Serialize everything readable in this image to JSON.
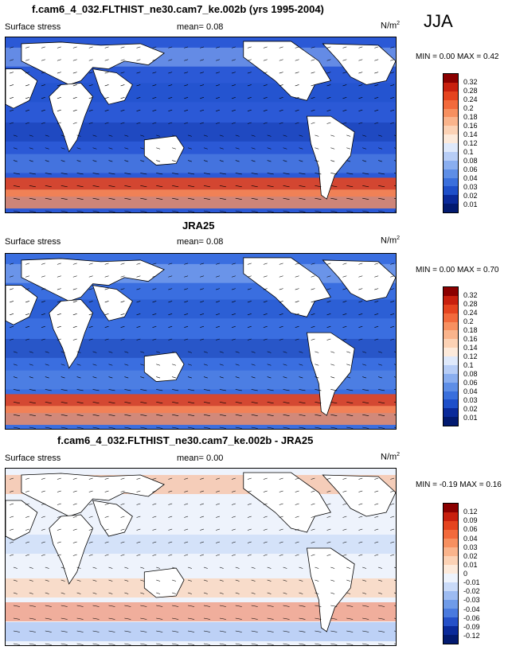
{
  "season": "JJA",
  "panels": [
    {
      "id": "model",
      "title": "f.cam6_4_032.FLTHIST_ne30.cam7_ke.002b (yrs 1995-2004)",
      "variable": "Surface stress",
      "mean_label": "mean=",
      "mean_value": "0.08",
      "units_base": "N/m",
      "units_exp": "2",
      "minmax": "MIN =  0.00 MAX =  0.42",
      "levels": [
        "0.32",
        "0.28",
        "0.24",
        "0.2",
        "0.18",
        "0.16",
        "0.14",
        "0.12",
        "0.1",
        "0.08",
        "0.06",
        "0.04",
        "0.03",
        "0.02",
        "0.01"
      ],
      "colors": [
        "#8b0000",
        "#c8200e",
        "#e5441f",
        "#f26a3c",
        "#f79060",
        "#fab48c",
        "#fcd2b5",
        "#fdeadb",
        "#dfe9fb",
        "#b7cdf6",
        "#8aaeef",
        "#5e8ee6",
        "#3a6fdc",
        "#1e4fc9",
        "#0a2a9a",
        "#021a70"
      ],
      "background": "#2b59d6"
    },
    {
      "id": "obs",
      "title": "JRA25",
      "variable": "Surface stress",
      "mean_label": "mean=",
      "mean_value": "0.08",
      "units_base": "N/m",
      "units_exp": "2",
      "minmax": "MIN =  0.00 MAX =  0.70",
      "levels": [
        "0.32",
        "0.28",
        "0.24",
        "0.2",
        "0.18",
        "0.16",
        "0.14",
        "0.12",
        "0.1",
        "0.08",
        "0.06",
        "0.04",
        "0.03",
        "0.02",
        "0.01"
      ],
      "colors": [
        "#8b0000",
        "#c8200e",
        "#e5441f",
        "#f26a3c",
        "#f79060",
        "#fab48c",
        "#fcd2b5",
        "#fdeadb",
        "#dfe9fb",
        "#b7cdf6",
        "#8aaeef",
        "#5e8ee6",
        "#3a6fdc",
        "#1e4fc9",
        "#0a2a9a",
        "#021a70"
      ],
      "background": "#3a6ee0"
    },
    {
      "id": "diff",
      "title": "f.cam6_4_032.FLTHIST_ne30.cam7_ke.002b - JRA25",
      "variable": "Surface stress",
      "mean_label": "mean=",
      "mean_value": "0.00",
      "units_base": "N/m",
      "units_exp": "2",
      "minmax": "MIN = -0.19 MAX =  0.16",
      "levels": [
        "0.12",
        "0.09",
        "0.06",
        "0.04",
        "0.03",
        "0.02",
        "0.01",
        "0",
        "-0.01",
        "-0.02",
        "-0.03",
        "-0.04",
        "-0.06",
        "-0.09",
        "-0.12"
      ],
      "colors": [
        "#8b0000",
        "#c8200e",
        "#e5441f",
        "#f26a3c",
        "#f79060",
        "#fab48c",
        "#fcd2b5",
        "#fdeadb",
        "#eef3fc",
        "#c9daf8",
        "#9dbbf1",
        "#6f9be8",
        "#4a7ade",
        "#2550c8",
        "#0a2a9a",
        "#021a70"
      ],
      "background": "#eef3fc"
    }
  ]
}
